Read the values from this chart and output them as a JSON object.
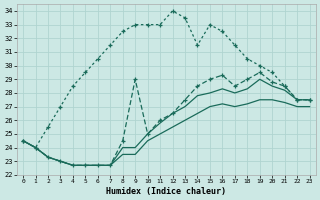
{
  "xlabel": "Humidex (Indice chaleur)",
  "bg_color": "#cce8e4",
  "grid_color": "#b0d4d0",
  "line_color": "#1a6b5a",
  "xlim": [
    -0.5,
    23.5
  ],
  "ylim": [
    22,
    34.5
  ],
  "xticks": [
    0,
    1,
    2,
    3,
    4,
    5,
    6,
    7,
    8,
    9,
    10,
    11,
    12,
    13,
    14,
    15,
    16,
    17,
    18,
    19,
    20,
    21,
    22,
    23
  ],
  "yticks": [
    22,
    23,
    24,
    25,
    26,
    27,
    28,
    29,
    30,
    31,
    32,
    33,
    34
  ],
  "series": [
    {
      "x": [
        0,
        1,
        2,
        3,
        4,
        5,
        6,
        7,
        8,
        9,
        10,
        11,
        12,
        13,
        14,
        15,
        16,
        17,
        18,
        19,
        20,
        21,
        22,
        23
      ],
      "y": [
        24.5,
        24.0,
        25.5,
        27.0,
        28.5,
        29.5,
        30.5,
        31.5,
        32.5,
        33.0,
        33.0,
        33.0,
        34.0,
        33.5,
        31.5,
        33.0,
        32.5,
        31.5,
        30.5,
        30.0,
        29.5,
        28.5,
        27.5,
        27.5
      ],
      "style": "dotted",
      "marker": true
    },
    {
      "x": [
        0,
        1,
        2,
        3,
        4,
        5,
        6,
        7,
        8,
        9,
        10,
        11,
        12,
        13,
        14,
        15,
        16,
        17,
        18,
        19,
        20,
        21,
        22,
        23
      ],
      "y": [
        24.5,
        24.0,
        23.3,
        23.0,
        22.7,
        22.7,
        22.7,
        22.7,
        24.5,
        29.0,
        25.0,
        26.0,
        26.5,
        27.5,
        28.5,
        29.0,
        29.3,
        28.5,
        29.0,
        29.5,
        28.8,
        28.5,
        27.5,
        27.5
      ],
      "style": "dashed",
      "marker": true
    },
    {
      "x": [
        0,
        1,
        2,
        3,
        4,
        5,
        6,
        7,
        8,
        9,
        10,
        11,
        12,
        13,
        14,
        15,
        16,
        17,
        18,
        19,
        20,
        21,
        22,
        23
      ],
      "y": [
        24.5,
        24.0,
        23.3,
        23.0,
        22.7,
        22.7,
        22.7,
        22.7,
        24.0,
        24.0,
        25.0,
        25.8,
        26.5,
        27.0,
        27.8,
        28.0,
        28.3,
        28.0,
        28.3,
        29.0,
        28.5,
        28.2,
        27.5,
        27.5
      ],
      "style": "solid",
      "marker": false
    },
    {
      "x": [
        0,
        1,
        2,
        3,
        4,
        5,
        6,
        7,
        8,
        9,
        10,
        11,
        12,
        13,
        14,
        15,
        16,
        17,
        18,
        19,
        20,
        21,
        22,
        23
      ],
      "y": [
        24.5,
        24.0,
        23.3,
        23.0,
        22.7,
        22.7,
        22.7,
        22.7,
        23.5,
        23.5,
        24.5,
        25.0,
        25.5,
        26.0,
        26.5,
        27.0,
        27.2,
        27.0,
        27.2,
        27.5,
        27.5,
        27.3,
        27.0,
        27.0
      ],
      "style": "solid",
      "marker": false
    }
  ]
}
